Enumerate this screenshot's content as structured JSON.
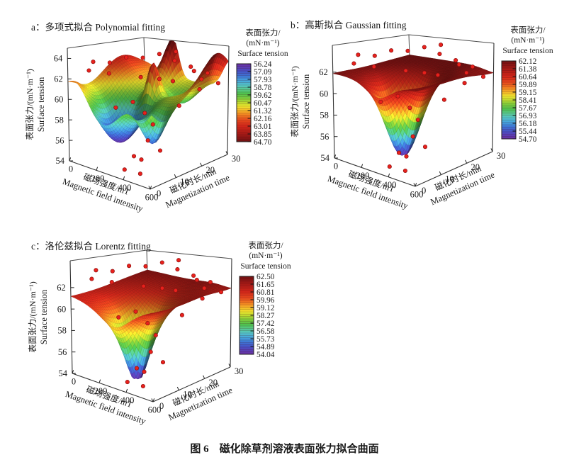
{
  "figure": {
    "caption": "图 6　磁化除草剂溶液表面张力拟合曲面"
  },
  "chart_data": {
    "type": "3d-surface-grid",
    "description": "Three fitted 3D surfaces of herbicide-solution surface tension versus magnetic field intensity and magnetization time, with experimental scatter points",
    "colormap": [
      [
        0,
        "#6B2FA0"
      ],
      [
        0.05,
        "#5A3FB5"
      ],
      [
        0.1,
        "#4653C6"
      ],
      [
        0.16,
        "#3E79D6"
      ],
      [
        0.22,
        "#47A8DC"
      ],
      [
        0.28,
        "#55C6C2"
      ],
      [
        0.33,
        "#57C98B"
      ],
      [
        0.38,
        "#4DC24F"
      ],
      [
        0.45,
        "#82CC3A"
      ],
      [
        0.5,
        "#C0DC30"
      ],
      [
        0.55,
        "#EDE22C"
      ],
      [
        0.6,
        "#F5B528"
      ],
      [
        0.66,
        "#F07D21"
      ],
      [
        0.72,
        "#E54A1D"
      ],
      [
        0.8,
        "#D3271A"
      ],
      [
        0.9,
        "#A51A16"
      ],
      [
        1,
        "#701112"
      ]
    ],
    "scatter_color": "#E8211C",
    "scatter_edge_color": "#8C1010",
    "scatter_points": [
      [
        0,
        10,
        63.2
      ],
      [
        45,
        14,
        63.0
      ],
      [
        90,
        18,
        63.45
      ],
      [
        135,
        22,
        63.3
      ],
      [
        180,
        26,
        63.6
      ],
      [
        225,
        30,
        63.75
      ],
      [
        60,
        5,
        62.7
      ],
      [
        130,
        9,
        62.35
      ],
      [
        270,
        27,
        63.0
      ],
      [
        330,
        30,
        62.3
      ],
      [
        390,
        28,
        62.1
      ],
      [
        450,
        30,
        61.9
      ],
      [
        210,
        17,
        61.7
      ],
      [
        270,
        21,
        61.4
      ],
      [
        330,
        23,
        61.2
      ],
      [
        480,
        26,
        61.6
      ],
      [
        540,
        22,
        61.0
      ],
      [
        600,
        26,
        61.5
      ],
      [
        560,
        13,
        60.1
      ],
      [
        250,
        5,
        59.6
      ],
      [
        300,
        9,
        60.0
      ],
      [
        330,
        12,
        58.8
      ],
      [
        352,
        14,
        57.6
      ],
      [
        372,
        11,
        56.4
      ],
      [
        345,
        7,
        55.2
      ],
      [
        362,
        9,
        54.75
      ],
      [
        352,
        3,
        54.4
      ],
      [
        430,
        5,
        54.15
      ],
      [
        462,
        11,
        55.8
      ]
    ],
    "panels": [
      {
        "id": "a",
        "title": "a：多项式拟合 Polynomial fitting",
        "x_axis": {
          "label_cn": "磁场强度/mT",
          "label_en": "Magnetic field intensity",
          "range": [
            0,
            600
          ],
          "ticks": [
            0,
            200,
            400,
            600
          ]
        },
        "y_axis": {
          "label_cn": "磁化时长/min",
          "label_en": "Magnetization time",
          "range": [
            0,
            30
          ],
          "ticks": [
            0,
            10,
            20,
            30
          ]
        },
        "z_axis": {
          "label_cn": "表面张力/(mN·m⁻¹)",
          "label_en": "Surface tension",
          "range": [
            54,
            65
          ],
          "ticks": [
            54,
            56,
            58,
            60,
            62,
            64
          ]
        },
        "colorbar": {
          "title_cn": "表面张力/",
          "title_unit": "(mN·m⁻¹)",
          "title_en": "Surface tension",
          "value_min": 56.24,
          "value_max": 64.7,
          "low_at_top": true,
          "labels": [
            "56.24",
            "57.09",
            "57.93",
            "58.78",
            "59.62",
            "60.47",
            "61.32",
            "62.16",
            "63.01",
            "63.85",
            "64.70"
          ]
        },
        "surface": {
          "base": 60.8,
          "slope_v": 0,
          "clamp": [
            54.0,
            64.95
          ],
          "terms": [
            {
              "type": "gauss",
              "a": -4.6,
              "cu": 0.42,
              "cv": 0.22,
              "su": 0.26,
              "sv": 0.28
            },
            {
              "type": "gauss",
              "a": -3.4,
              "cu": 0.88,
              "cv": 0.16,
              "su": 0.13,
              "sv": 0.17
            },
            {
              "type": "gauss",
              "a": 3.6,
              "cu": 0.5,
              "cv": 0.56,
              "su": 0.075,
              "sv": 0.09
            },
            {
              "type": "gauss",
              "a": 4.6,
              "cu": 0.34,
              "cv": 1.02,
              "su": 0.09,
              "sv": 0.15
            },
            {
              "type": "gauss",
              "a": 2.6,
              "cu": -0.04,
              "cv": 0.72,
              "su": 0.22,
              "sv": 0.34
            },
            {
              "type": "gauss",
              "a": 3.8,
              "cu": 1.02,
              "cv": 0.85,
              "su": 0.12,
              "sv": 0.26
            },
            {
              "type": "gauss",
              "a": 1.5,
              "cu": 0.1,
              "cv": 0.0,
              "su": 0.17,
              "sv": 0.2
            },
            {
              "type": "gauss",
              "a": -1.6,
              "cu": 0.66,
              "cv": 0.76,
              "su": 0.17,
              "sv": 0.14
            }
          ]
        }
      },
      {
        "id": "b",
        "title": "b：高斯拟合 Gaussian fitting",
        "x_axis": {
          "label_cn": "磁场强度/mT",
          "label_en": "Magnetic field intensity",
          "range": [
            0,
            600
          ],
          "ticks": [
            0,
            200,
            400,
            600
          ]
        },
        "y_axis": {
          "label_cn": "磁化时长/min",
          "label_en": "Magnetization time",
          "range": [
            0,
            30
          ],
          "ticks": [
            0,
            10,
            20,
            30
          ]
        },
        "z_axis": {
          "label_cn": "表面张力/(mN·m⁻¹)",
          "label_en": "Surface tension",
          "range": [
            54,
            64.5
          ],
          "ticks": [
            54,
            56,
            58,
            60,
            62
          ]
        },
        "colorbar": {
          "title_cn": "表面张力/",
          "title_unit": "(mN·m⁻¹)",
          "title_en": "Surface tension",
          "value_min": 54.7,
          "value_max": 62.12,
          "low_at_top": false,
          "labels": [
            "62.12",
            "61.38",
            "60.64",
            "59.89",
            "59.15",
            "58.41",
            "57.67",
            "56.93",
            "56.18",
            "55.44",
            "54.70"
          ]
        },
        "surface": {
          "base": 61.62,
          "slope_v": 0.5,
          "clamp": [
            54.7,
            62.12
          ],
          "terms": [
            {
              "type": "gauss",
              "a": -7.25,
              "cu": 0.54,
              "cv": 0.33,
              "su": 0.2,
              "sv": 0.245
            },
            {
              "type": "gauss",
              "a": -0.5,
              "cu": 1.05,
              "cv": 1.0,
              "su": 0.22,
              "sv": 0.28
            },
            {
              "type": "gauss",
              "a": 0.25,
              "cu": 0.0,
              "cv": 0.0,
              "su": 0.3,
              "sv": 0.3
            }
          ]
        }
      },
      {
        "id": "c",
        "title": "c：洛伦兹拟合 Lorentz fitting",
        "x_axis": {
          "label_cn": "磁场强度/mT",
          "label_en": "Magnetic field intensity",
          "range": [
            0,
            600
          ],
          "ticks": [
            0,
            200,
            400,
            600
          ]
        },
        "y_axis": {
          "label_cn": "磁化时长/min",
          "label_en": "Magnetization time",
          "range": [
            0,
            30
          ],
          "ticks": [
            0,
            10,
            20,
            30
          ]
        },
        "z_axis": {
          "label_cn": "表面张力/(mN·m⁻¹)",
          "label_en": "Surface tension",
          "range": [
            54,
            64.5
          ],
          "ticks": [
            54,
            56,
            58,
            60,
            62
          ]
        },
        "colorbar": {
          "title_cn": "表面张力/",
          "title_unit": "(mN·m⁻¹)",
          "title_en": "Surface tension",
          "value_min": 54.04,
          "value_max": 62.5,
          "low_at_top": false,
          "labels": [
            "62.50",
            "61.65",
            "60.81",
            "59.96",
            "59.12",
            "58.27",
            "57.42",
            "56.58",
            "55.73",
            "54.89",
            "54.04"
          ]
        },
        "surface": {
          "base": 61.8,
          "slope_v": 0.7,
          "clamp": [
            54.04,
            62.5
          ],
          "terms": [
            {
              "type": "lorentz",
              "a": -8.4,
              "cu": 0.52,
              "cv": 0.3,
              "su": 0.16,
              "sv": 0.2
            },
            {
              "type": "gauss",
              "a": -0.5,
              "cu": 1.05,
              "cv": 1.0,
              "su": 0.22,
              "sv": 0.28
            }
          ]
        }
      }
    ]
  }
}
